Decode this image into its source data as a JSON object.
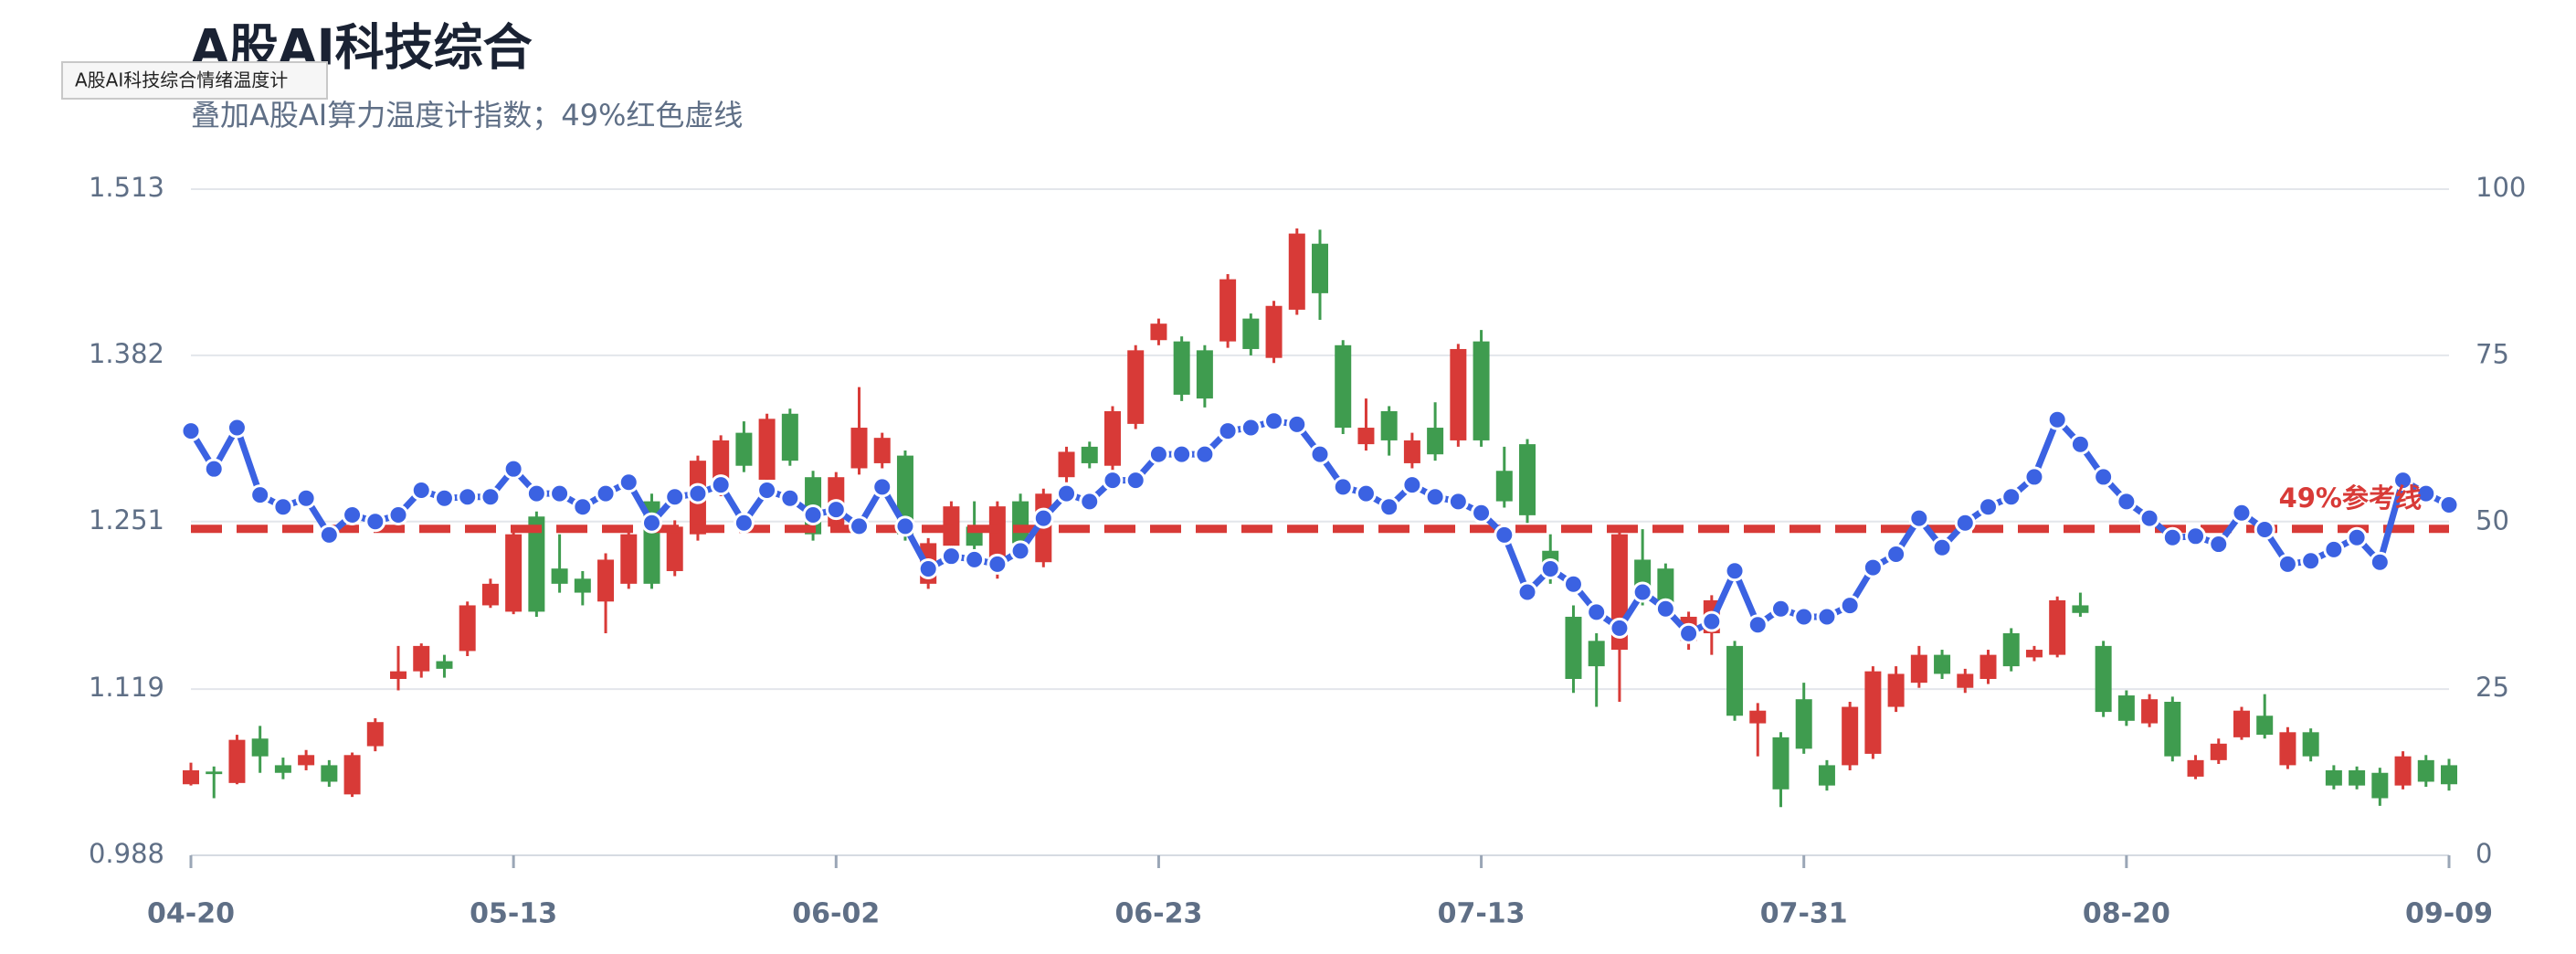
{
  "chart_data": {
    "type": "candlestick",
    "title": "A股AI科技综合",
    "subtitle": "叠加A股AI算力温度计指数；49%红色虚线",
    "hover_label": "A股AI科技综合情绪温度计",
    "categories": [
      "04-20",
      null,
      null,
      null,
      null,
      null,
      null,
      null,
      null,
      null,
      null,
      null,
      null,
      null,
      "05-13",
      null,
      null,
      null,
      null,
      null,
      null,
      null,
      null,
      null,
      null,
      null,
      null,
      null,
      "06-02",
      null,
      null,
      null,
      null,
      null,
      null,
      null,
      null,
      null,
      null,
      null,
      null,
      null,
      "06-23",
      null,
      null,
      null,
      null,
      null,
      null,
      null,
      null,
      null,
      null,
      null,
      null,
      null,
      "07-13",
      null,
      null,
      null,
      null,
      null,
      null,
      null,
      null,
      null,
      null,
      null,
      null,
      null,
      "07-31",
      null,
      null,
      null,
      null,
      null,
      null,
      null,
      null,
      null,
      null,
      null,
      null,
      null,
      "08-20",
      null,
      null,
      null,
      null,
      null,
      null,
      null,
      null,
      null,
      null,
      null,
      null,
      null,
      "09-09"
    ],
    "open": [
      1.044,
      1.054,
      1.045,
      1.08,
      1.059,
      1.059,
      1.059,
      1.036,
      1.074,
      1.127,
      1.133,
      1.141,
      1.149,
      1.185,
      1.18,
      1.255,
      1.214,
      1.206,
      1.188,
      1.202,
      1.267,
      1.212,
      1.241,
      1.276,
      1.321,
      1.284,
      1.336,
      1.286,
      1.247,
      1.293,
      1.297,
      1.303,
      1.202,
      1.232,
      1.247,
      1.215,
      1.267,
      1.219,
      1.286,
      1.31,
      1.295,
      1.328,
      1.394,
      1.393,
      1.386,
      1.393,
      1.411,
      1.38,
      1.418,
      1.47,
      1.39,
      1.312,
      1.338,
      1.297,
      1.325,
      1.315,
      1.393,
      1.291,
      1.312,
      1.228,
      1.176,
      1.157,
      1.15,
      1.221,
      1.214,
      1.157,
      1.163,
      1.153,
      1.092,
      1.081,
      1.111,
      1.059,
      1.059,
      1.068,
      1.105,
      1.124,
      1.146,
      1.12,
      1.127,
      1.163,
      1.144,
      1.146,
      1.185,
      1.153,
      1.114,
      1.092,
      1.109,
      1.05,
      1.063,
      1.081,
      1.098,
      1.059,
      1.085,
      1.055,
      1.055,
      1.053,
      1.043,
      1.063,
      1.059
    ],
    "close": [
      1.055,
      1.052,
      1.079,
      1.066,
      1.053,
      1.067,
      1.046,
      1.067,
      1.093,
      1.133,
      1.153,
      1.135,
      1.185,
      1.202,
      1.241,
      1.18,
      1.202,
      1.195,
      1.221,
      1.241,
      1.202,
      1.247,
      1.299,
      1.315,
      1.295,
      1.332,
      1.299,
      1.241,
      1.286,
      1.325,
      1.317,
      1.241,
      1.234,
      1.263,
      1.232,
      1.263,
      1.234,
      1.273,
      1.306,
      1.297,
      1.338,
      1.386,
      1.407,
      1.351,
      1.348,
      1.442,
      1.387,
      1.421,
      1.478,
      1.431,
      1.325,
      1.325,
      1.315,
      1.315,
      1.304,
      1.387,
      1.315,
      1.267,
      1.256,
      1.208,
      1.127,
      1.137,
      1.241,
      1.195,
      1.183,
      1.176,
      1.189,
      1.098,
      1.102,
      1.04,
      1.072,
      1.043,
      1.105,
      1.133,
      1.131,
      1.146,
      1.131,
      1.131,
      1.146,
      1.137,
      1.15,
      1.189,
      1.179,
      1.101,
      1.094,
      1.111,
      1.066,
      1.063,
      1.076,
      1.102,
      1.083,
      1.085,
      1.066,
      1.043,
      1.043,
      1.033,
      1.066,
      1.046,
      1.044
    ],
    "high": [
      1.061,
      1.058,
      1.083,
      1.09,
      1.065,
      1.071,
      1.063,
      1.069,
      1.096,
      1.153,
      1.155,
      1.146,
      1.188,
      1.206,
      1.243,
      1.259,
      1.241,
      1.212,
      1.226,
      1.245,
      1.273,
      1.252,
      1.303,
      1.319,
      1.33,
      1.336,
      1.34,
      1.291,
      1.29,
      1.357,
      1.321,
      1.307,
      1.238,
      1.267,
      1.267,
      1.267,
      1.273,
      1.277,
      1.31,
      1.314,
      1.342,
      1.39,
      1.411,
      1.397,
      1.39,
      1.446,
      1.415,
      1.425,
      1.482,
      1.481,
      1.394,
      1.348,
      1.342,
      1.321,
      1.345,
      1.391,
      1.402,
      1.31,
      1.316,
      1.241,
      1.185,
      1.163,
      1.245,
      1.245,
      1.218,
      1.18,
      1.193,
      1.157,
      1.108,
      1.085,
      1.124,
      1.063,
      1.109,
      1.137,
      1.137,
      1.153,
      1.15,
      1.135,
      1.15,
      1.167,
      1.153,
      1.192,
      1.195,
      1.157,
      1.118,
      1.115,
      1.113,
      1.067,
      1.08,
      1.105,
      1.115,
      1.089,
      1.088,
      1.059,
      1.058,
      1.057,
      1.07,
      1.067,
      1.064
    ],
    "low": [
      1.043,
      1.033,
      1.044,
      1.053,
      1.048,
      1.055,
      1.042,
      1.034,
      1.07,
      1.118,
      1.128,
      1.128,
      1.145,
      1.183,
      1.178,
      1.176,
      1.195,
      1.185,
      1.163,
      1.198,
      1.198,
      1.208,
      1.236,
      1.271,
      1.29,
      1.28,
      1.295,
      1.236,
      1.243,
      1.288,
      1.293,
      1.236,
      1.198,
      1.228,
      1.228,
      1.206,
      1.228,
      1.215,
      1.282,
      1.293,
      1.291,
      1.324,
      1.39,
      1.346,
      1.341,
      1.388,
      1.382,
      1.376,
      1.414,
      1.41,
      1.32,
      1.307,
      1.303,
      1.293,
      1.299,
      1.31,
      1.31,
      1.262,
      1.25,
      1.202,
      1.116,
      1.105,
      1.109,
      1.185,
      1.176,
      1.15,
      1.146,
      1.094,
      1.066,
      1.026,
      1.068,
      1.039,
      1.055,
      1.064,
      1.101,
      1.12,
      1.127,
      1.116,
      1.123,
      1.133,
      1.141,
      1.144,
      1.176,
      1.097,
      1.09,
      1.089,
      1.062,
      1.048,
      1.06,
      1.079,
      1.08,
      1.056,
      1.062,
      1.04,
      1.04,
      1.027,
      1.04,
      1.042,
      1.039
    ],
    "up_color": "#d83a37",
    "down_color": "#3f9c4f",
    "ylim": [
      0.988,
      1.513
    ],
    "yticks": [
      0.988,
      1.119,
      1.251,
      1.382,
      1.513
    ],
    "y2lim": [
      0,
      100
    ],
    "y2ticks": [
      0,
      25,
      50,
      75,
      100
    ],
    "grid": true,
    "series": [
      {
        "type": "line",
        "axis": "y2",
        "color": "#3b62e2",
        "values": [
          63.7,
          58.0,
          64.2,
          54.1,
          52.3,
          53.6,
          48.1,
          51.1,
          50.1,
          51.1,
          54.8,
          53.6,
          53.8,
          53.8,
          58.0,
          54.3,
          54.3,
          52.3,
          54.3,
          56.0,
          49.9,
          53.8,
          54.3,
          55.6,
          49.9,
          54.8,
          53.6,
          51.1,
          51.9,
          49.4,
          55.3,
          49.4,
          43.0,
          44.9,
          44.4,
          43.7,
          45.7,
          50.6,
          54.3,
          53.1,
          56.3,
          56.3,
          60.2,
          60.2,
          60.2,
          63.7,
          64.2,
          65.2,
          64.7,
          60.2,
          55.3,
          54.3,
          52.3,
          55.6,
          53.8,
          53.1,
          51.4,
          48.1,
          39.5,
          43.0,
          40.7,
          36.5,
          34.1,
          39.5,
          37.0,
          33.3,
          35.1,
          42.7,
          34.6,
          37.0,
          35.8,
          35.8,
          37.5,
          43.2,
          45.2,
          50.6,
          46.2,
          49.9,
          52.3,
          53.8,
          56.8,
          65.4,
          61.7,
          56.8,
          53.1,
          50.6,
          47.7,
          47.9,
          46.7,
          51.4,
          48.9,
          43.7,
          44.2,
          45.9,
          47.7,
          44.0,
          56.3,
          54.3,
          52.6
        ]
      }
    ],
    "reference_line": {
      "value": 49,
      "axis": "y2",
      "label": "49%参考线",
      "color": "#d83a37"
    }
  }
}
